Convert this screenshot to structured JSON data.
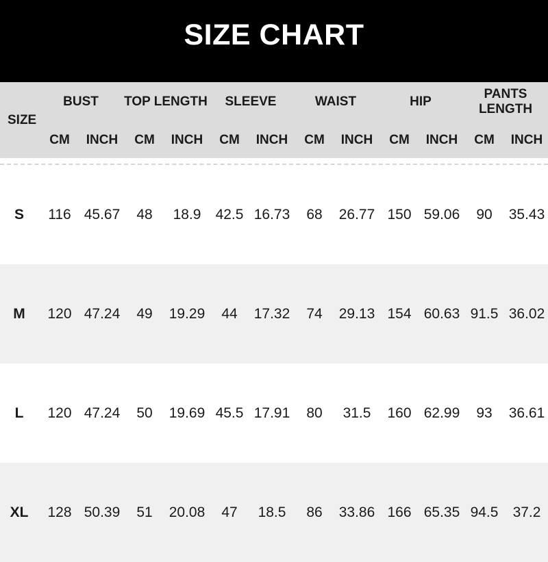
{
  "banner": {
    "title": "SIZE CHART"
  },
  "colors": {
    "banner_bg": "#000000",
    "banner_text": "#ffffff",
    "header_bg": "#dcdcdc",
    "row_bg": "#ffffff",
    "row_alt_bg": "#f0f0f0",
    "text": "#1a1a1a"
  },
  "chart_data": {
    "type": "table",
    "title": "SIZE CHART",
    "size_column_header": "SIZE",
    "column_groups": [
      "BUST",
      "TOP LENGTH",
      "SLEEVE",
      "WAIST",
      "HIP",
      "PANTS LENGTH"
    ],
    "unit_subheaders": [
      "CM",
      "INCH"
    ],
    "columns": [
      "SIZE",
      "BUST CM",
      "BUST INCH",
      "TOP LENGTH CM",
      "TOP LENGTH INCH",
      "SLEEVE CM",
      "SLEEVE INCH",
      "WAIST CM",
      "WAIST INCH",
      "HIP CM",
      "HIP INCH",
      "PANTS LENGTH CM",
      "PANTS LENGTH INCH"
    ],
    "rows": [
      {
        "size": "S",
        "values": [
          116,
          45.67,
          48,
          18.9,
          42.5,
          16.73,
          68,
          26.77,
          150,
          59.06,
          90,
          35.43
        ]
      },
      {
        "size": "M",
        "values": [
          120,
          47.24,
          49,
          19.29,
          44,
          17.32,
          74,
          29.13,
          154,
          60.63,
          91.5,
          36.02
        ]
      },
      {
        "size": "L",
        "values": [
          120,
          47.24,
          50,
          19.69,
          45.5,
          17.91,
          80,
          31.5,
          160,
          62.99,
          93,
          36.61
        ]
      },
      {
        "size": "XL",
        "values": [
          128,
          50.39,
          51,
          20.08,
          47,
          18.5,
          86,
          33.86,
          166,
          65.35,
          94.5,
          37.2
        ]
      }
    ]
  }
}
